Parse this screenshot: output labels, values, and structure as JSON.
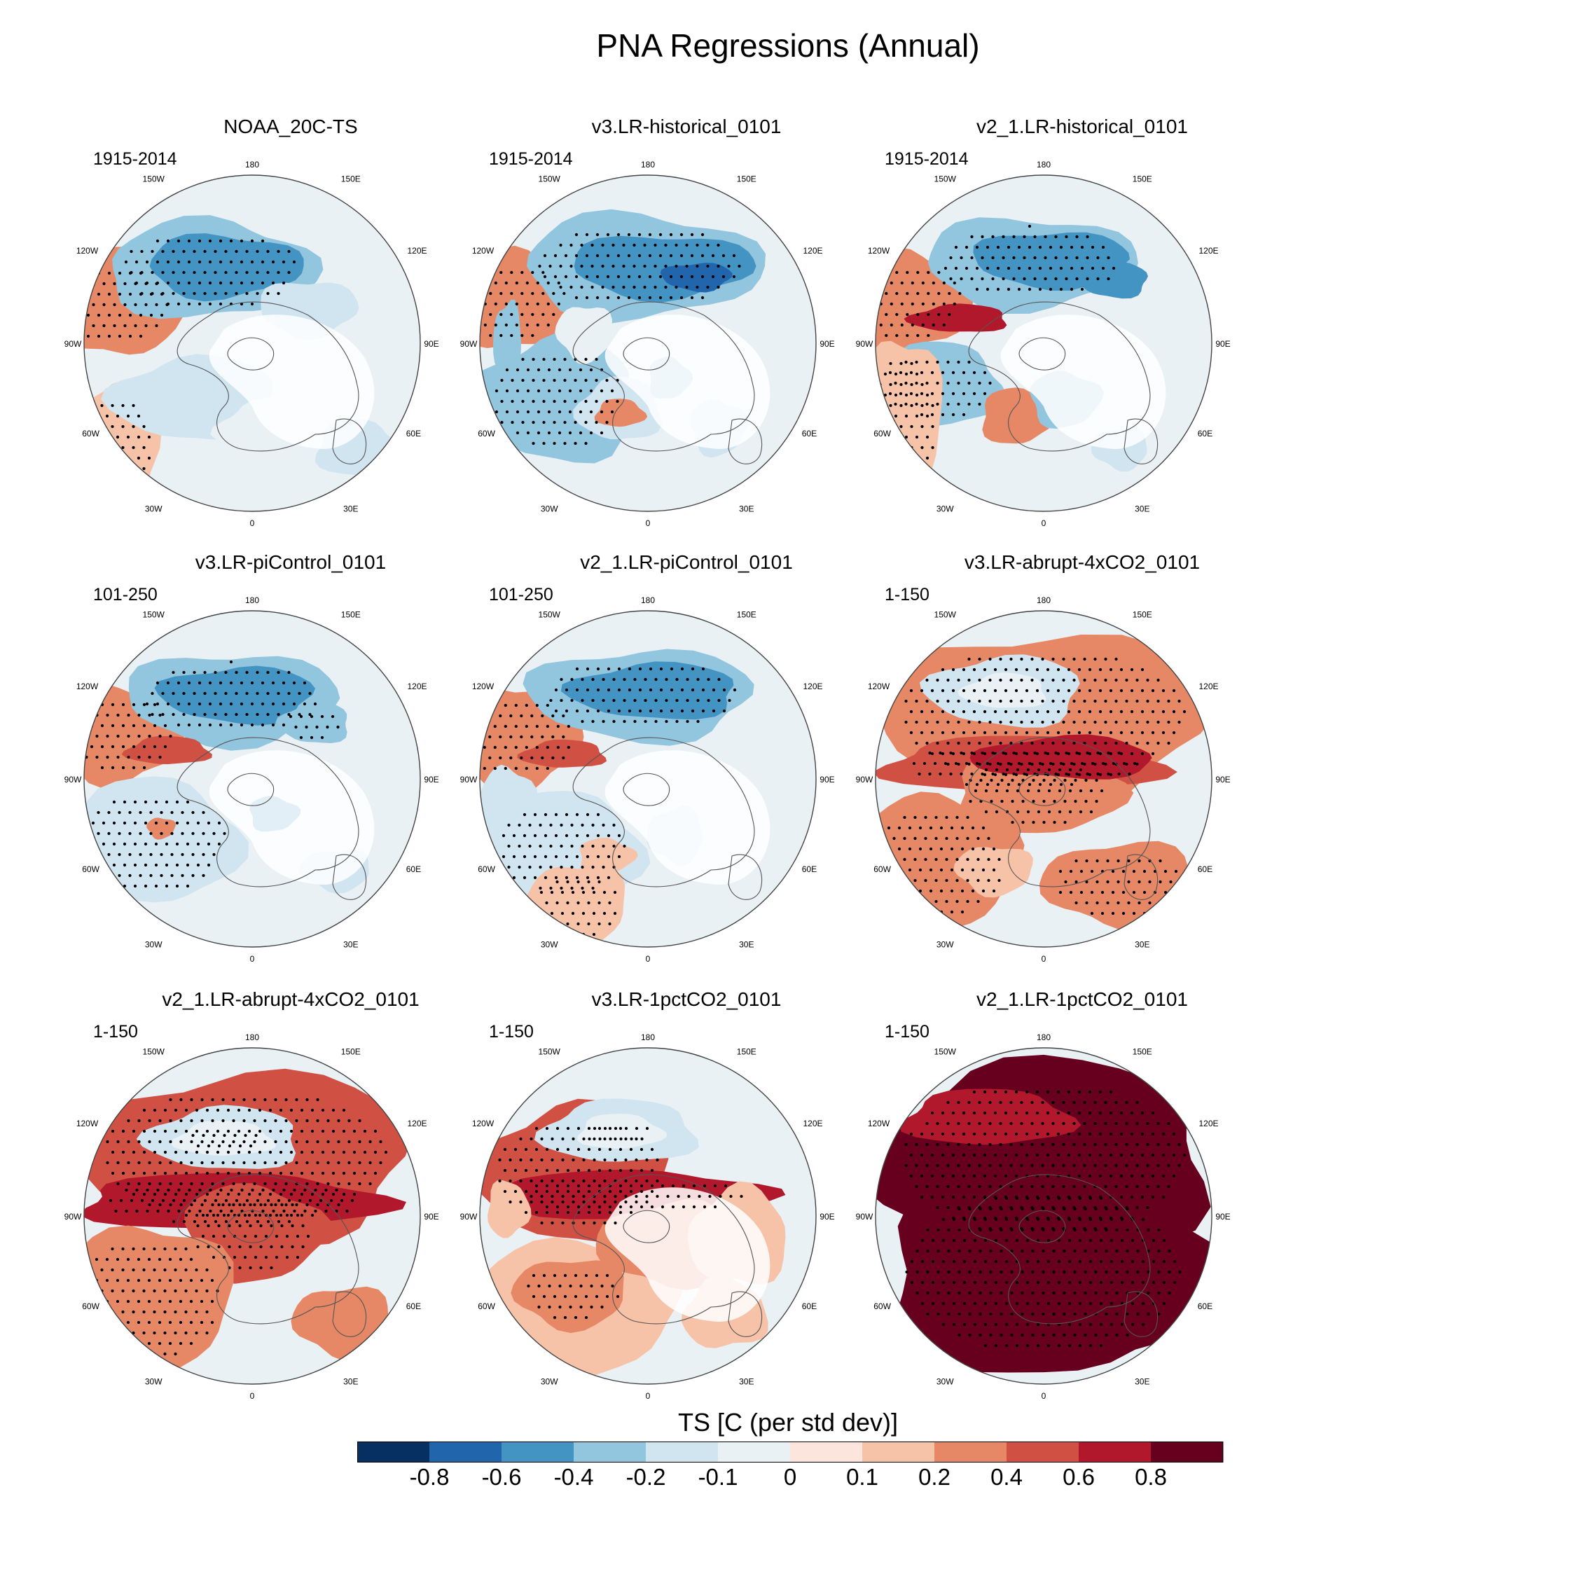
{
  "title": "PNA Regressions (Annual)",
  "panels": [
    {
      "name": "NOAA_20C-TS",
      "period": "1915-2014",
      "pattern": "obs"
    },
    {
      "name": "v3.LR-historical_0101",
      "period": "1915-2014",
      "pattern": "hist_v3"
    },
    {
      "name": "v2_1.LR-historical_0101",
      "period": "1915-2014",
      "pattern": "hist_v2"
    },
    {
      "name": "v3.LR-piControl_0101",
      "period": "101-250",
      "pattern": "pic_v3"
    },
    {
      "name": "v2_1.LR-piControl_0101",
      "period": "101-250",
      "pattern": "pic_v2"
    },
    {
      "name": "v3.LR-abrupt-4xCO2_0101",
      "period": "1-150",
      "pattern": "a4x_v3"
    },
    {
      "name": "v2_1.LR-abrupt-4xCO2_0101",
      "period": "1-150",
      "pattern": "a4x_v2"
    },
    {
      "name": "v3.LR-1pctCO2_0101",
      "period": "1-150",
      "pattern": "pct_v3"
    },
    {
      "name": "v2_1.LR-1pctCO2_0101",
      "period": "1-150",
      "pattern": "pct_v2"
    }
  ],
  "map_labels": {
    "lon": [
      "180",
      "150E",
      "120E",
      "90E",
      "60E",
      "30E",
      "0",
      "30W",
      "60W",
      "90W",
      "120W",
      "150W"
    ]
  },
  "chart_data": {
    "type": "heatmap",
    "projection": "polar stereographic (Northern Hemisphere)",
    "variable": "TS",
    "units": "C (per std dev)",
    "colorbar": {
      "title": "TS [C (per std dev)]",
      "levels": [
        -0.8,
        -0.6,
        -0.4,
        -0.2,
        -0.1,
        0,
        0.1,
        0.2,
        0.4,
        0.6,
        0.8
      ],
      "tick_labels": [
        "-0.8",
        "-0.6",
        "-0.4",
        "-0.2",
        "-0.1",
        "0",
        "0.1",
        "0.2",
        "0.4",
        "0.6",
        "0.8"
      ],
      "colors": [
        "#053061",
        "#2166ac",
        "#4393c3",
        "#92c5de",
        "#d1e5f0",
        "#eaf1f5",
        "#fbe5dd",
        "#f7c3a8",
        "#e68865",
        "#d05143",
        "#b2182b",
        "#67001f"
      ]
    }
  }
}
